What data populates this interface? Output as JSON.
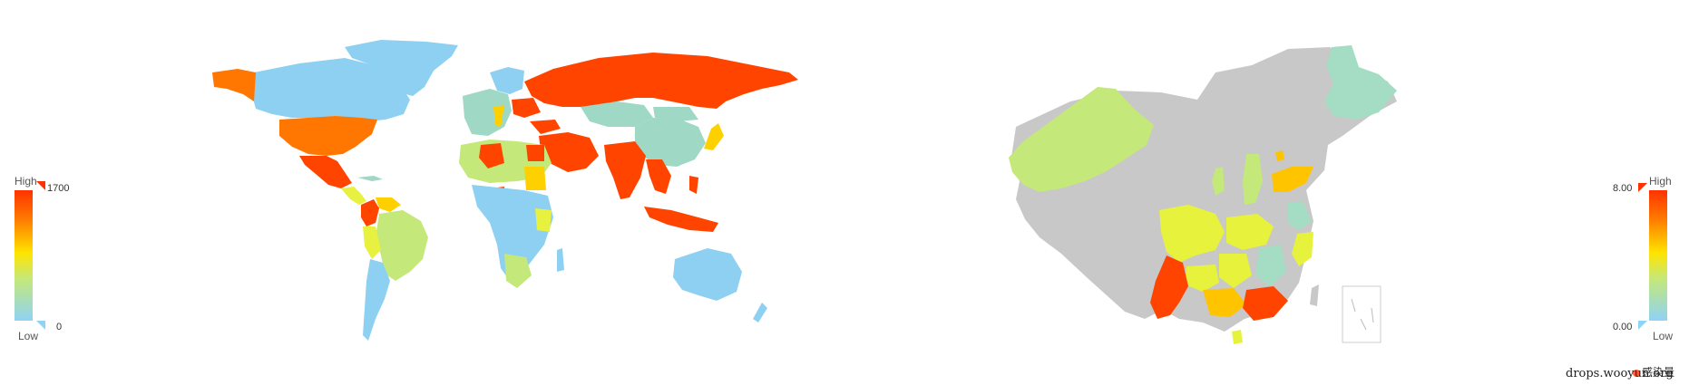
{
  "world_map": {
    "legend": {
      "high_label": "High",
      "low_label": "Low",
      "max_value": "1700",
      "min_value": "0"
    },
    "colors": {
      "very_high": "#ff4400",
      "high": "#ff7700",
      "mid": "#ffd000",
      "mid_low": "#e8f040",
      "low": "#c4e87a",
      "very_low": "#8ed0f2",
      "pale": "#9fd8c4"
    }
  },
  "china_map": {
    "legend": {
      "high_label": "High",
      "low_label": "Low",
      "max_value": "8.00",
      "min_value": "0.00"
    },
    "colors": {
      "no_data": "#c8c8c8",
      "low": "#c4e87a",
      "teal": "#a5dcc4",
      "mid": "#e6f23c",
      "orange": "#ffc400",
      "high": "#ff4400"
    }
  },
  "series_legend": {
    "label": "感染量",
    "color": "#ff5a36"
  },
  "watermark": "drops.wooyun.org"
}
